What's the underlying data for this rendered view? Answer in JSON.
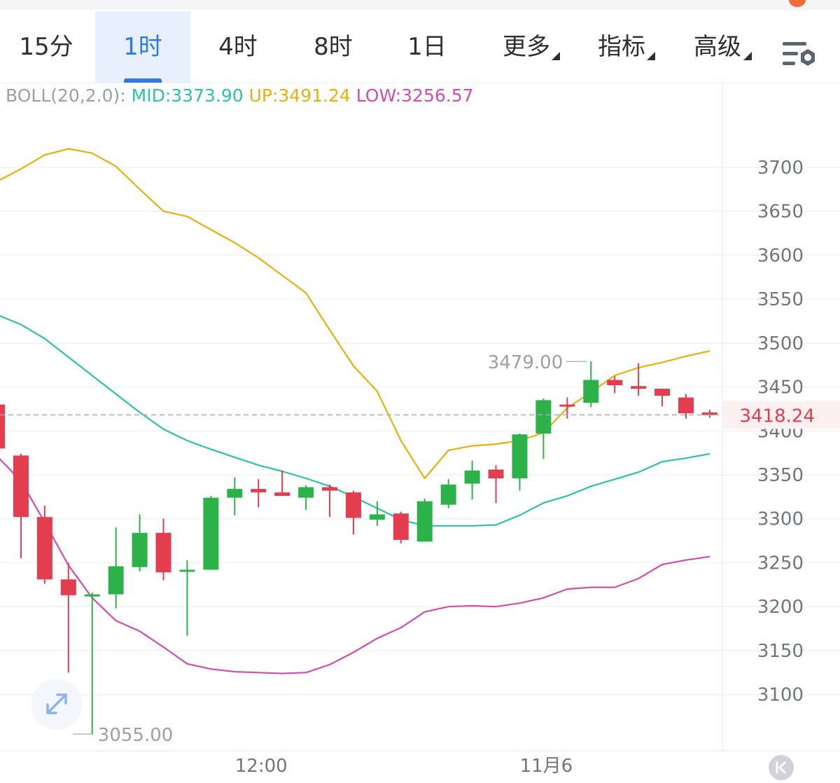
{
  "tabs": [
    {
      "label": "15分",
      "active": false,
      "dropdown": false
    },
    {
      "label": "1时",
      "active": true,
      "dropdown": false
    },
    {
      "label": "4时",
      "active": false,
      "dropdown": false
    },
    {
      "label": "8时",
      "active": false,
      "dropdown": false
    },
    {
      "label": "1日",
      "active": false,
      "dropdown": false
    },
    {
      "label": "更多",
      "active": false,
      "dropdown": true
    },
    {
      "label": "指标",
      "active": false,
      "dropdown": true
    },
    {
      "label": "高级",
      "active": false,
      "dropdown": true
    }
  ],
  "boll": {
    "label": "BOLL(20,2.0):",
    "mid": "MID:3373.90",
    "up": "UP:3491.24",
    "low": "LOW:3256.57"
  },
  "colors": {
    "accent": "#2e7be6",
    "bull": "#2db24a",
    "bear": "#e33e4f",
    "mid": "#2cc3a5",
    "up": "#e8b00c",
    "low": "#d24dae"
  },
  "icons": {
    "settings": "settings-sliders-gear-icon",
    "expand": "expand-arrows-icon",
    "back": "back-to-latest-icon"
  },
  "chart_data": {
    "type": "candlestick",
    "y_ticks": [
      3700,
      3650,
      3600,
      3550,
      3500,
      3450,
      3400,
      3350,
      3300,
      3250,
      3200,
      3150,
      3100
    ],
    "y_tick_labels": [
      "3700",
      "3650",
      "3600",
      "3550",
      "3500",
      "3450",
      "3400",
      "3350",
      "3300",
      "3250",
      "3200",
      "3150",
      "3100"
    ],
    "ylim": [
      3036,
      3766
    ],
    "x_tick_labels": [
      {
        "label": "12:00",
        "index": 11
      },
      {
        "label": "11月6",
        "index": 23
      }
    ],
    "last_price": 3418.24,
    "last_price_label": "3418.24",
    "high_annotation": {
      "label": "3479.00",
      "index": 25,
      "value": 3479.0
    },
    "low_annotation": {
      "label": "3055.00",
      "index": 3,
      "value": 3055.0
    },
    "candles": [
      {
        "o": 3430,
        "h": 3430,
        "l": 3380,
        "c": 3380
      },
      {
        "o": 3372,
        "h": 3374,
        "l": 3255,
        "c": 3302
      },
      {
        "o": 3302,
        "h": 3315,
        "l": 3226,
        "c": 3231
      },
      {
        "o": 3231,
        "h": 3250,
        "l": 3125,
        "c": 3213
      },
      {
        "o": 3212,
        "h": 3216,
        "l": 3055,
        "c": 3214
      },
      {
        "o": 3214,
        "h": 3290,
        "l": 3198,
        "c": 3246
      },
      {
        "o": 3245,
        "h": 3305,
        "l": 3240,
        "c": 3284
      },
      {
        "o": 3284,
        "h": 3300,
        "l": 3230,
        "c": 3239
      },
      {
        "o": 3240,
        "h": 3253,
        "l": 3167,
        "c": 3242
      },
      {
        "o": 3242,
        "h": 3326,
        "l": 3242,
        "c": 3324
      },
      {
        "o": 3324,
        "h": 3347,
        "l": 3304,
        "c": 3334
      },
      {
        "o": 3334,
        "h": 3345,
        "l": 3313,
        "c": 3330
      },
      {
        "o": 3330,
        "h": 3355,
        "l": 3328,
        "c": 3326
      },
      {
        "o": 3324,
        "h": 3338,
        "l": 3310,
        "c": 3336
      },
      {
        "o": 3336,
        "h": 3339,
        "l": 3302,
        "c": 3332
      },
      {
        "o": 3330,
        "h": 3332,
        "l": 3282,
        "c": 3301
      },
      {
        "o": 3299,
        "h": 3320,
        "l": 3292,
        "c": 3305
      },
      {
        "o": 3306,
        "h": 3308,
        "l": 3272,
        "c": 3276
      },
      {
        "o": 3274,
        "h": 3323,
        "l": 3274,
        "c": 3320
      },
      {
        "o": 3316,
        "h": 3345,
        "l": 3312,
        "c": 3339
      },
      {
        "o": 3340,
        "h": 3366,
        "l": 3322,
        "c": 3355
      },
      {
        "o": 3356,
        "h": 3361,
        "l": 3318,
        "c": 3346
      },
      {
        "o": 3346,
        "h": 3397,
        "l": 3332,
        "c": 3396
      },
      {
        "o": 3397,
        "h": 3437,
        "l": 3368,
        "c": 3435
      },
      {
        "o": 3430,
        "h": 3438,
        "l": 3414,
        "c": 3429
      },
      {
        "o": 3432,
        "h": 3479,
        "l": 3427,
        "c": 3458
      },
      {
        "o": 3458,
        "h": 3462,
        "l": 3443,
        "c": 3452
      },
      {
        "o": 3451,
        "h": 3477,
        "l": 3440,
        "c": 3448
      },
      {
        "o": 3448,
        "h": 3448,
        "l": 3428,
        "c": 3440
      },
      {
        "o": 3438,
        "h": 3442,
        "l": 3414,
        "c": 3420
      },
      {
        "o": 3421,
        "h": 3424,
        "l": 3415,
        "c": 3418
      }
    ],
    "series": [
      {
        "name": "UP",
        "values": [
          3684,
          3698,
          3714,
          3721,
          3716,
          3701,
          3675,
          3650,
          3644,
          3629,
          3614,
          3597,
          3577,
          3557,
          3515,
          3474,
          3445,
          3389,
          3346,
          3378,
          3383,
          3385,
          3389,
          3398,
          3426,
          3444,
          3463,
          3472,
          3478,
          3485,
          3491
        ]
      },
      {
        "name": "MID",
        "values": [
          3532,
          3521,
          3505,
          3484,
          3463,
          3442,
          3421,
          3402,
          3389,
          3379,
          3370,
          3361,
          3354,
          3346,
          3337,
          3325,
          3312,
          3299,
          3292,
          3292,
          3292,
          3293,
          3304,
          3318,
          3326,
          3337,
          3345,
          3353,
          3365,
          3369,
          3374
        ]
      },
      {
        "name": "LOW",
        "values": [
          3371,
          3343,
          3296,
          3247,
          3210,
          3184,
          3172,
          3154,
          3135,
          3129,
          3126,
          3125,
          3124,
          3125,
          3134,
          3148,
          3164,
          3176,
          3194,
          3200,
          3201,
          3200,
          3204,
          3210,
          3220,
          3222,
          3222,
          3232,
          3248,
          3253,
          3257
        ]
      }
    ]
  }
}
